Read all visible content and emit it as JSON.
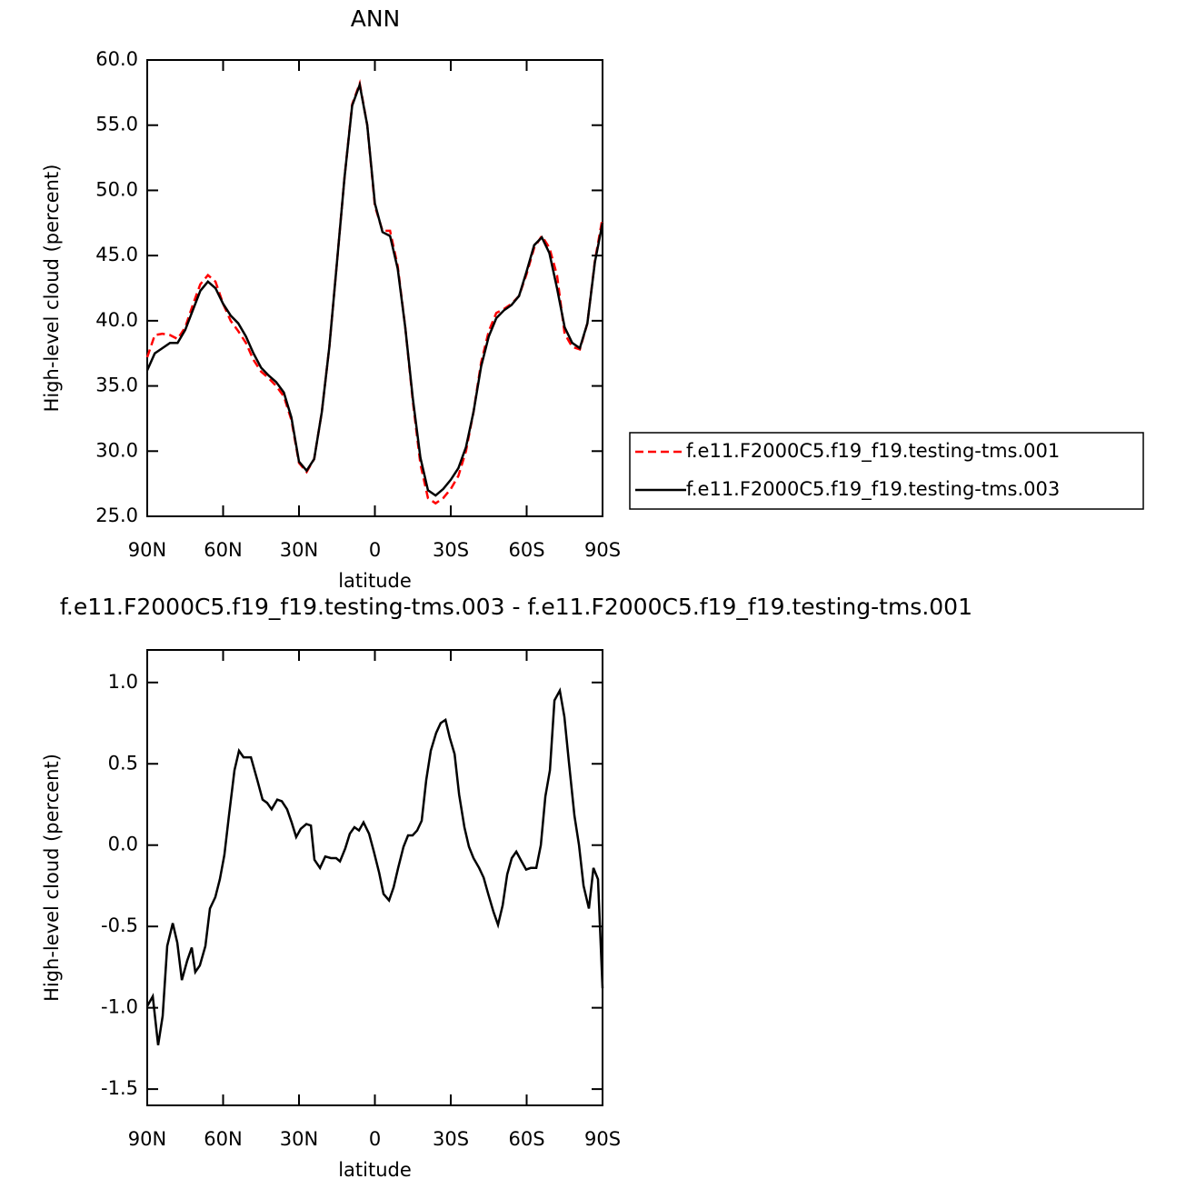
{
  "chart_data": [
    {
      "type": "line",
      "title": "ANN",
      "x_label": "latitude",
      "y_label": "High-level cloud (percent)",
      "x": [
        90,
        87,
        84,
        81,
        78,
        75,
        72,
        69,
        66,
        63,
        60,
        57,
        54,
        51,
        48,
        45,
        42,
        39,
        36,
        33,
        30,
        27,
        24,
        21,
        18,
        15,
        12,
        9,
        6,
        3,
        0,
        -3,
        -6,
        -9,
        -12,
        -15,
        -18,
        -21,
        -24,
        -27,
        -30,
        -33,
        -36,
        -39,
        -42,
        -45,
        -48,
        -51,
        -54,
        -57,
        -60,
        -63,
        -66,
        -69,
        -72,
        -75,
        -78,
        -81,
        -84,
        -87,
        -90
      ],
      "series": [
        {
          "name": "f.e11.F2000C5.f19_f19.testing-tms.001",
          "color": "#ff0000",
          "line_style": "dashed",
          "values": [
            37.2,
            38.9,
            39.0,
            38.9,
            38.6,
            39.5,
            41.2,
            42.8,
            43.5,
            43.0,
            41.3,
            40.0,
            39.2,
            38.3,
            37.0,
            36.1,
            35.6,
            35.0,
            34.2,
            32.4,
            29.1,
            28.4,
            29.4,
            33.0,
            38.0,
            44.5,
            51.0,
            56.6,
            58.2,
            55.0,
            48.8,
            46.9,
            46.9,
            44.2,
            39.5,
            33.8,
            29.0,
            26.4,
            26.0,
            26.4,
            27.1,
            28.1,
            30.0,
            33.0,
            36.8,
            39.2,
            40.6,
            40.9,
            41.3,
            41.9,
            43.6,
            45.6,
            46.5,
            45.6,
            43.5,
            39.0,
            38.0,
            37.8,
            39.8,
            44.6,
            47.9
          ]
        },
        {
          "name": "f.e11.F2000C5.f19_f19.testing-tms.003",
          "color": "#000000",
          "line_style": "solid",
          "values": [
            36.2,
            37.5,
            37.9,
            38.3,
            38.3,
            39.3,
            40.8,
            42.3,
            43.0,
            42.5,
            41.3,
            40.4,
            39.8,
            38.8,
            37.5,
            36.4,
            35.8,
            35.3,
            34.5,
            32.6,
            29.2,
            28.5,
            29.4,
            33.0,
            38.0,
            44.5,
            51.0,
            56.5,
            58.1,
            55.0,
            49.0,
            46.8,
            46.5,
            44.0,
            39.5,
            34.0,
            29.5,
            27.0,
            26.6,
            27.1,
            27.8,
            28.7,
            30.3,
            33.0,
            36.5,
            38.8,
            40.2,
            40.8,
            41.2,
            41.9,
            43.8,
            45.8,
            46.4,
            45.2,
            42.5,
            39.5,
            38.3,
            37.9,
            39.8,
            44.5,
            47.5
          ]
        }
      ],
      "xlim": [
        90,
        -90
      ],
      "xticks": [
        {
          "value": 90,
          "label": "90N"
        },
        {
          "value": 60,
          "label": "60N"
        },
        {
          "value": 30,
          "label": "30N"
        },
        0,
        {
          "value": -30,
          "label": "30S"
        },
        {
          "value": -60,
          "label": "60S"
        },
        {
          "value": -90,
          "label": "90S"
        }
      ],
      "ylim": [
        25,
        60
      ],
      "yticks": [
        {
          "value": 25,
          "label": "25.0"
        },
        {
          "value": 30,
          "label": "30.0"
        },
        {
          "value": 35,
          "label": "35.0"
        },
        {
          "value": 40,
          "label": "40.0"
        },
        {
          "value": 45,
          "label": "45.0"
        },
        {
          "value": 50,
          "label": "50.0"
        },
        {
          "value": 55,
          "label": "55.0"
        },
        {
          "value": 60,
          "label": "60.0"
        }
      ],
      "legend": "right"
    },
    {
      "type": "line",
      "title": "f.e11.F2000C5.f19_f19.testing-tms.003 - f.e11.F2000C5.f19_f19.testing-tms.001",
      "x_label": "latitude",
      "y_label": "High-level cloud (percent)",
      "x": [
        90,
        87.8,
        85.7,
        83.9,
        82.1,
        79.9,
        78.1,
        76.3,
        74.2,
        72.4,
        71,
        69.2,
        67,
        65.2,
        63.1,
        61.3,
        59.5,
        57.7,
        55.5,
        53.7,
        51.9,
        49,
        46.5,
        44.4,
        42.6,
        40.8,
        38.6,
        36.8,
        34.7,
        32.9,
        31.1,
        29.3,
        27.1,
        25.3,
        23.9,
        21.7,
        19.6,
        17.4,
        15.3,
        13.8,
        11.7,
        9.9,
        8.1,
        6.3,
        4.5,
        2.3,
        0.4,
        -1.7,
        -3.4,
        -5.6,
        -7.4,
        -9.2,
        -11.3,
        -13.1,
        -14.9,
        -16.7,
        -18.5,
        -20.3,
        -22.1,
        -24.2,
        -26,
        -27.9,
        -29.6,
        -31.5,
        -33.3,
        -35.4,
        -37.2,
        -39,
        -41.2,
        -43,
        -44.8,
        -46.9,
        -48.7,
        -50.5,
        -52.3,
        -54.1,
        -55.9,
        -58,
        -59.8,
        -61.6,
        -63.8,
        -65.6,
        -67.4,
        -69.2,
        -71,
        -73.1,
        -74.9,
        -76.7,
        -78.9,
        -80.7,
        -82.5,
        -84.6,
        -86.4,
        -88.2,
        -90
      ],
      "series": [
        {
          "color": "#000000",
          "line_style": "solid",
          "values": [
            -0.99,
            -0.93,
            -1.23,
            -1.05,
            -0.62,
            -0.48,
            -0.6,
            -0.83,
            -0.71,
            -0.63,
            -0.78,
            -0.74,
            -0.62,
            -0.39,
            -0.32,
            -0.21,
            -0.06,
            0.18,
            0.46,
            0.58,
            0.54,
            0.54,
            0.4,
            0.28,
            0.26,
            0.22,
            0.28,
            0.27,
            0.22,
            0.14,
            0.05,
            0.1,
            0.13,
            0.12,
            -0.09,
            -0.14,
            -0.07,
            -0.08,
            -0.08,
            -0.1,
            -0.02,
            0.07,
            0.11,
            0.09,
            0.14,
            0.07,
            -0.04,
            -0.17,
            -0.3,
            -0.34,
            -0.26,
            -0.14,
            -0.01,
            0.06,
            0.06,
            0.09,
            0.15,
            0.4,
            0.58,
            0.69,
            0.75,
            0.77,
            0.66,
            0.56,
            0.31,
            0.11,
            -0.01,
            -0.08,
            -0.14,
            -0.2,
            -0.3,
            -0.41,
            -0.49,
            -0.37,
            -0.18,
            -0.08,
            -0.04,
            -0.1,
            -0.15,
            -0.14,
            -0.14,
            0,
            0.3,
            0.46,
            0.89,
            0.95,
            0.79,
            0.51,
            0.18,
            0,
            -0.25,
            -0.39,
            -0.14,
            -0.21,
            -0.88
          ]
        }
      ],
      "xlim": [
        90,
        -90
      ],
      "xticks": [
        {
          "value": 90,
          "label": "90N"
        },
        {
          "value": 60,
          "label": "60N"
        },
        {
          "value": 30,
          "label": "30N"
        },
        0,
        {
          "value": -30,
          "label": "30S"
        },
        {
          "value": -60,
          "label": "60S"
        },
        {
          "value": -90,
          "label": "90S"
        }
      ],
      "ylim": [
        -1.6,
        1.2
      ],
      "yticks": [
        -1.5,
        {
          "value": -1,
          "label": "-1.0"
        },
        -0.5,
        {
          "value": 0,
          "label": "0.0"
        },
        0.5,
        {
          "value": 1,
          "label": "1.0"
        }
      ]
    }
  ]
}
